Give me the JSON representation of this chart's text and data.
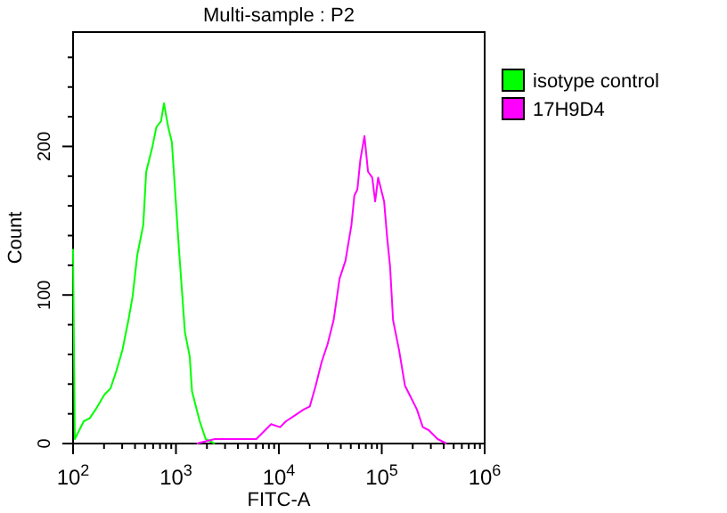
{
  "chart_data": {
    "type": "line",
    "title": "Multi-sample : P2",
    "xlabel": "FITC-A",
    "ylabel": "Count",
    "log": "x",
    "xlim": [
      100,
      1000000
    ],
    "ylim": [
      0,
      277
    ],
    "legend": "right",
    "line_style": "solid",
    "grid": false,
    "xticks": [
      {
        "value": 100,
        "label": "10$^{2}$"
      },
      {
        "value": 200,
        "label": null
      },
      {
        "value": 300,
        "label": null
      },
      {
        "value": 400,
        "label": null
      },
      {
        "value": 500,
        "label": null
      },
      {
        "value": 600,
        "label": null
      },
      {
        "value": 700,
        "label": null
      },
      {
        "value": 800,
        "label": null
      },
      {
        "value": 900,
        "label": null
      },
      {
        "value": 1000,
        "label": "10$^{3}$"
      },
      {
        "value": 2000,
        "label": null
      },
      {
        "value": 3000,
        "label": null
      },
      {
        "value": 4000,
        "label": null
      },
      {
        "value": 5000,
        "label": null
      },
      {
        "value": 6000,
        "label": null
      },
      {
        "value": 7000,
        "label": null
      },
      {
        "value": 8000,
        "label": null
      },
      {
        "value": 9000,
        "label": null
      },
      {
        "value": 10000,
        "label": "10$^{4}$"
      },
      {
        "value": 20000,
        "label": null
      },
      {
        "value": 30000,
        "label": null
      },
      {
        "value": 40000,
        "label": null
      },
      {
        "value": 50000,
        "label": null
      },
      {
        "value": 60000,
        "label": null
      },
      {
        "value": 70000,
        "label": null
      },
      {
        "value": 80000,
        "label": null
      },
      {
        "value": 90000,
        "label": null
      },
      {
        "value": 100000,
        "label": "10$^{5}$"
      },
      {
        "value": 200000,
        "label": null
      },
      {
        "value": 300000,
        "label": null
      },
      {
        "value": 400000,
        "label": null
      },
      {
        "value": 500000,
        "label": null
      },
      {
        "value": 600000,
        "label": null
      },
      {
        "value": 700000,
        "label": null
      },
      {
        "value": 800000,
        "label": null
      },
      {
        "value": 900000,
        "label": null
      },
      {
        "value": 1000000,
        "label": "10$^{6}$"
      }
    ],
    "yticks": [
      0,
      {
        "value": 20,
        "label": null
      },
      {
        "value": 40,
        "label": null
      },
      {
        "value": 60,
        "label": null
      },
      {
        "value": 80,
        "label": null
      },
      100,
      {
        "value": 120,
        "label": null
      },
      {
        "value": 140,
        "label": null
      },
      {
        "value": 160,
        "label": null
      },
      {
        "value": 180,
        "label": null
      },
      200,
      {
        "value": 220,
        "label": null
      },
      {
        "value": 240,
        "label": null
      },
      {
        "value": 260,
        "label": null
      }
    ],
    "series": [
      {
        "name": "isotype control",
        "color": "#00ff00",
        "x": [
          100,
          104,
          127,
          145,
          166,
          202,
          231,
          264,
          302,
          345,
          379,
          421,
          481,
          514,
          587,
          645,
          716,
          765,
          841,
          912,
          962,
          1069,
          1222,
          1358,
          1433,
          1702,
          1944,
          2376
        ],
        "values": [
          131,
          3,
          15,
          17,
          23,
          33,
          37,
          49,
          63,
          83,
          99,
          127,
          147,
          183,
          199,
          213,
          217,
          229,
          213,
          203,
          179,
          131,
          75,
          59,
          35,
          15,
          3,
          0
        ]
      },
      {
        "name": "17H9D4",
        "color": "#ff00ff",
        "x": [
          1592,
          2376,
          4048,
          6031,
          8410,
          10280,
          11730,
          14320,
          17500,
          20000,
          22810,
          26070,
          29780,
          34040,
          38900,
          44360,
          50700,
          54200,
          57940,
          61940,
          67920,
          73580,
          80850,
          86300,
          92260,
          105400,
          112700,
          120500,
          128800,
          147200,
          168000,
          192000,
          219300,
          250600,
          286400,
          349300,
          426600
        ],
        "values": [
          0,
          3,
          3,
          3,
          13,
          11,
          15,
          19,
          23,
          25,
          39,
          55,
          67,
          83,
          111,
          123,
          147,
          167,
          171,
          191,
          207,
          183,
          179,
          163,
          179,
          163,
          139,
          119,
          83,
          63,
          39,
          31,
          23,
          11,
          9,
          3,
          0
        ]
      }
    ]
  }
}
